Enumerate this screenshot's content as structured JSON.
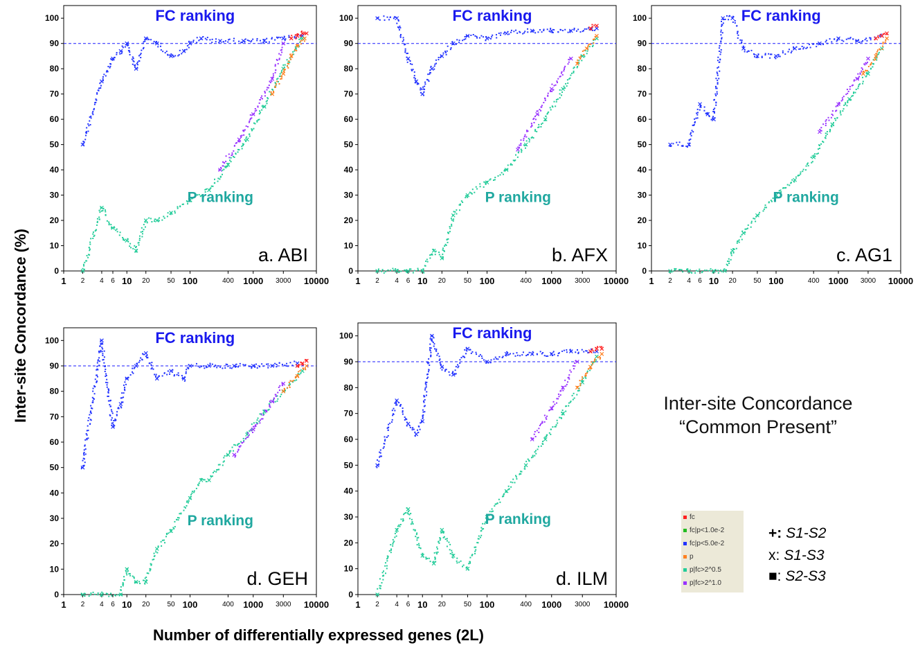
{
  "figure": {
    "ylabel": "Inter-site Concordance (%)",
    "xlabel": "Number of differentially expressed genes (2L)",
    "note_line1": "Inter-site Concordance",
    "note_line2": "“Common Present”",
    "legend": [
      {
        "label": "fc",
        "color": "#ff2020"
      },
      {
        "label": "fc|p<1.0e-2",
        "color": "#22bb22"
      },
      {
        "label": "fc|p<5.0e-2",
        "color": "#2233ff"
      },
      {
        "label": "p",
        "color": "#ff8020"
      },
      {
        "label": "p|fc>2^0.5",
        "color": "#22cc99"
      },
      {
        "label": "p|fc>2^1.0",
        "color": "#9933ff"
      }
    ],
    "symbol_key": [
      {
        "symbol": "+:",
        "pair": "S1-S2"
      },
      {
        "symbol": "x:",
        "pair": "S1-S3"
      },
      {
        "symbol": "■:",
        "pair": "S2-S3"
      }
    ]
  },
  "chart_data": [
    {
      "type": "scatter",
      "label": "a. ABI",
      "fc_label": "FC ranking",
      "p_label": "P ranking",
      "x_scale": "log",
      "xlim": [
        1,
        10000
      ],
      "ylim": [
        0,
        105
      ],
      "reference_line_y": 90,
      "x_ticks": [
        1,
        2,
        4,
        6,
        10,
        20,
        50,
        100,
        400,
        1000,
        3000,
        10000
      ],
      "y_ticks": [
        0,
        10,
        20,
        30,
        40,
        50,
        60,
        70,
        80,
        90,
        100
      ],
      "series": [
        {
          "key": "fc|p<5.0e-2",
          "x": [
            2,
            4,
            6,
            8,
            10,
            14,
            20,
            30,
            50,
            80,
            100,
            150,
            300,
            700,
            1500,
            3000,
            6000
          ],
          "y": [
            50,
            75,
            84,
            87,
            90,
            80,
            92,
            90,
            85,
            87,
            90,
            92,
            91,
            91,
            91,
            92,
            93
          ]
        },
        {
          "key": "fc",
          "x": [
            4000,
            5000,
            6000,
            7000
          ],
          "y": [
            92,
            93,
            94,
            94
          ]
        },
        {
          "key": "p|fc>2^0.5",
          "x": [
            2,
            4,
            6,
            10,
            14,
            20,
            30,
            50,
            100,
            200,
            400,
            800,
            1500,
            3000,
            6000
          ],
          "y": [
            0,
            25,
            17,
            12,
            8,
            20,
            20,
            23,
            28,
            32,
            42,
            52,
            65,
            80,
            92
          ]
        },
        {
          "key": "p|fc>2^1.0",
          "x": [
            300,
            600,
            1000,
            2000,
            3000
          ],
          "y": [
            40,
            52,
            62,
            76,
            90
          ]
        },
        {
          "key": "p",
          "x": [
            2000,
            3000,
            4000,
            5000,
            6500
          ],
          "y": [
            70,
            78,
            85,
            89,
            92
          ]
        }
      ]
    },
    {
      "type": "scatter",
      "label": "b. AFX",
      "fc_label": "FC ranking",
      "p_label": "P ranking",
      "x_scale": "log",
      "xlim": [
        1,
        10000
      ],
      "ylim": [
        0,
        105
      ],
      "reference_line_y": 90,
      "x_ticks": [
        1,
        2,
        4,
        6,
        10,
        20,
        50,
        100,
        400,
        1000,
        3000,
        10000
      ],
      "y_ticks": [
        0,
        10,
        20,
        30,
        40,
        50,
        60,
        70,
        80,
        90,
        100
      ],
      "series": [
        {
          "key": "fc|p<5.0e-2",
          "x": [
            2,
            4,
            6,
            8,
            10,
            14,
            20,
            30,
            50,
            100,
            200,
            500,
            1000,
            2000,
            5000
          ],
          "y": [
            100,
            100,
            84,
            75,
            70,
            80,
            85,
            90,
            93,
            92,
            94,
            95,
            95,
            95,
            96
          ]
        },
        {
          "key": "fc",
          "x": [
            4000,
            5000
          ],
          "y": [
            96,
            97
          ]
        },
        {
          "key": "p|fc>2^0.5",
          "x": [
            2,
            4,
            6,
            10,
            15,
            20,
            30,
            50,
            100,
            200,
            400,
            800,
            1500,
            3000,
            5000
          ],
          "y": [
            0,
            0,
            0,
            0,
            8,
            5,
            22,
            30,
            35,
            40,
            50,
            60,
            72,
            85,
            92
          ]
        },
        {
          "key": "p|fc>2^1.0",
          "x": [
            300,
            600,
            1000,
            2000
          ],
          "y": [
            48,
            62,
            72,
            84
          ]
        },
        {
          "key": "p",
          "x": [
            2500,
            3500,
            5000
          ],
          "y": [
            82,
            88,
            93
          ]
        }
      ]
    },
    {
      "type": "scatter",
      "label": "c. AG1",
      "fc_label": "FC ranking",
      "p_label": "P ranking",
      "x_scale": "log",
      "xlim": [
        1,
        10000
      ],
      "ylim": [
        0,
        105
      ],
      "reference_line_y": 90,
      "x_ticks": [
        1,
        2,
        4,
        6,
        10,
        20,
        50,
        100,
        400,
        1000,
        3000,
        10000
      ],
      "y_ticks": [
        0,
        10,
        20,
        30,
        40,
        50,
        60,
        70,
        80,
        90,
        100
      ],
      "series": [
        {
          "key": "fc|p<5.0e-2",
          "x": [
            2,
            4,
            6,
            8,
            10,
            14,
            20,
            30,
            50,
            100,
            200,
            500,
            1000,
            2000,
            5000
          ],
          "y": [
            50,
            50,
            66,
            62,
            60,
            100,
            100,
            88,
            85,
            85,
            88,
            90,
            92,
            91,
            93
          ]
        },
        {
          "key": "fc",
          "x": [
            4000,
            5000,
            6000
          ],
          "y": [
            92,
            93,
            94
          ]
        },
        {
          "key": "p|fc>2^0.5",
          "x": [
            2,
            4,
            10,
            15,
            20,
            30,
            50,
            100,
            200,
            400,
            800,
            1500,
            3000,
            5000
          ],
          "y": [
            0,
            0,
            0,
            0,
            8,
            15,
            22,
            30,
            36,
            45,
            58,
            68,
            78,
            88
          ]
        },
        {
          "key": "p|fc>2^1.0",
          "x": [
            500,
            1000,
            2000,
            3000
          ],
          "y": [
            55,
            66,
            76,
            84
          ]
        },
        {
          "key": "p",
          "x": [
            2500,
            4000,
            6000
          ],
          "y": [
            78,
            85,
            92
          ]
        }
      ]
    },
    {
      "type": "scatter",
      "label": "d. GEH",
      "fc_label": "FC ranking",
      "p_label": "P ranking",
      "x_scale": "log",
      "xlim": [
        1,
        10000
      ],
      "ylim": [
        0,
        105
      ],
      "reference_line_y": 90,
      "x_ticks": [
        1,
        2,
        4,
        6,
        10,
        20,
        50,
        100,
        400,
        1000,
        3000,
        10000
      ],
      "y_ticks": [
        0,
        10,
        20,
        30,
        40,
        50,
        60,
        70,
        80,
        90,
        100
      ],
      "series": [
        {
          "key": "fc|p<5.0e-2",
          "x": [
            2,
            4,
            6,
            8,
            10,
            14,
            20,
            30,
            50,
            80,
            100,
            200,
            500,
            1000,
            2000,
            5000
          ],
          "y": [
            50,
            100,
            66,
            75,
            85,
            90,
            95,
            85,
            88,
            85,
            90,
            90,
            90,
            90,
            90,
            91
          ]
        },
        {
          "key": "fc",
          "x": [
            5000,
            6000,
            7000
          ],
          "y": [
            90,
            91,
            92
          ]
        },
        {
          "key": "p|fc>2^0.5",
          "x": [
            2,
            4,
            8,
            10,
            14,
            20,
            30,
            50,
            100,
            150,
            200,
            400,
            800,
            1500,
            3000,
            6000
          ],
          "y": [
            0,
            0,
            0,
            10,
            5,
            5,
            18,
            25,
            38,
            45,
            45,
            55,
            63,
            72,
            80,
            88
          ]
        },
        {
          "key": "p|fc>2^1.0",
          "x": [
            500,
            1000,
            2000,
            3000
          ],
          "y": [
            55,
            65,
            76,
            83
          ]
        },
        {
          "key": "p",
          "x": [
            3000,
            5000,
            7000
          ],
          "y": [
            80,
            86,
            90
          ]
        }
      ]
    },
    {
      "type": "scatter",
      "label": "d. ILM",
      "fc_label": "FC ranking",
      "p_label": "P ranking",
      "x_scale": "log",
      "xlim": [
        1,
        10000
      ],
      "ylim": [
        0,
        105
      ],
      "reference_line_y": 90,
      "x_ticks": [
        1,
        2,
        4,
        6,
        10,
        20,
        50,
        100,
        400,
        1000,
        3000,
        10000
      ],
      "y_ticks": [
        0,
        10,
        20,
        30,
        40,
        50,
        60,
        70,
        80,
        90,
        100
      ],
      "series": [
        {
          "key": "fc|p<5.0e-2",
          "x": [
            2,
            4,
            6,
            8,
            10,
            14,
            20,
            30,
            50,
            100,
            200,
            500,
            1000,
            2000,
            5000
          ],
          "y": [
            50,
            75,
            66,
            62,
            67,
            100,
            88,
            85,
            95,
            90,
            93,
            93,
            93,
            94,
            94
          ]
        },
        {
          "key": "fc",
          "x": [
            4000,
            5000,
            6000
          ],
          "y": [
            94,
            95,
            95
          ]
        },
        {
          "key": "p|fc>2^0.5",
          "x": [
            2,
            4,
            6,
            10,
            15,
            20,
            30,
            50,
            100,
            200,
            400,
            800,
            1500,
            3000,
            5000
          ],
          "y": [
            0,
            25,
            33,
            15,
            12,
            25,
            15,
            10,
            30,
            40,
            50,
            60,
            70,
            82,
            92
          ]
        },
        {
          "key": "p|fc>2^1.0",
          "x": [
            500,
            1000,
            1500,
            2500
          ],
          "y": [
            60,
            72,
            80,
            90
          ]
        },
        {
          "key": "p",
          "x": [
            2500,
            4000,
            6000
          ],
          "y": [
            80,
            88,
            93
          ]
        }
      ]
    }
  ]
}
